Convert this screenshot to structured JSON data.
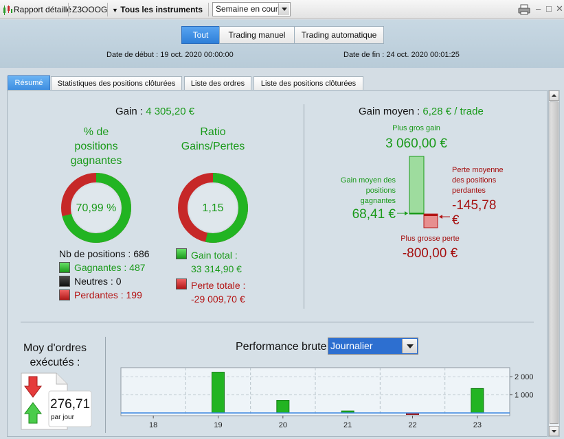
{
  "toolbar": {
    "report": "Rapport détaillé",
    "account": "Z3OOOG",
    "instruments": "Tous les instruments",
    "period": "Semaine en cours"
  },
  "filters": {
    "all": "Tout",
    "manual": "Trading manuel",
    "auto": "Trading automatique"
  },
  "dates": {
    "start_label": "Date de début :",
    "start_value": "19 oct. 2020 00:00:00",
    "end_label": "Date de fin :",
    "end_value": "24 oct. 2020 00:01:25"
  },
  "tabs": [
    "Résumé",
    "Statistiques des positions clôturées",
    "Liste des ordres",
    "Liste des positions clôturées"
  ],
  "summary": {
    "gain_label": "Gain :",
    "gain_value": "4 305,20 €",
    "pct_title": [
      "% de",
      "positions",
      "gagnantes"
    ],
    "pct_value": "70,99 %",
    "pct_fraction": 0.7099,
    "ratio_title": [
      "Ratio",
      "Gains/Pertes"
    ],
    "ratio_value": "1,15",
    "ratio_fraction": 0.534,
    "positions_label": "Nb de positions :",
    "positions_value": "686",
    "winners_label": "Gagnantes :",
    "winners_value": "487",
    "neutral_label": "Neutres :",
    "neutral_value": "0",
    "losers_label": "Perdantes :",
    "losers_value": "199",
    "total_gain_label": "Gain total :",
    "total_gain_value": "33 314,90 €",
    "total_loss_label": "Perte totale :",
    "total_loss_value": "-29 009,70 €"
  },
  "avg": {
    "title_label": "Gain moyen :",
    "title_value": "6,28 € / trade",
    "max_gain_label": "Plus gros gain",
    "max_gain_value": "3 060,00 €",
    "avg_win_label": [
      "Gain moyen des",
      "positions",
      "gagnantes"
    ],
    "avg_win_value": "68,41 €",
    "avg_loss_label": [
      "Perte moyenne",
      "des positions",
      "perdantes"
    ],
    "avg_loss_value": [
      "-145,78",
      "€"
    ],
    "max_loss_label": "Plus grosse perte",
    "max_loss_value": "-800,00 €"
  },
  "orders": {
    "title": [
      "Moy d'ordres",
      "exécutés :"
    ],
    "value": "276,71",
    "unit": "par jour"
  },
  "perf": {
    "title": "Performance brute",
    "mode": "Journalier"
  },
  "colors": {
    "green": "#22b422",
    "red": "#c62828",
    "blue": "#3a86e0"
  },
  "chart_data": {
    "type": "bar",
    "categories": [
      "18",
      "19",
      "20",
      "21",
      "22",
      "23"
    ],
    "values": [
      0,
      2250,
      700,
      110,
      -90,
      1350
    ],
    "yticks": [
      "2 000",
      "1 000"
    ],
    "ytick_values": [
      2000,
      1000
    ],
    "ylim": [
      -150,
      2500
    ]
  }
}
